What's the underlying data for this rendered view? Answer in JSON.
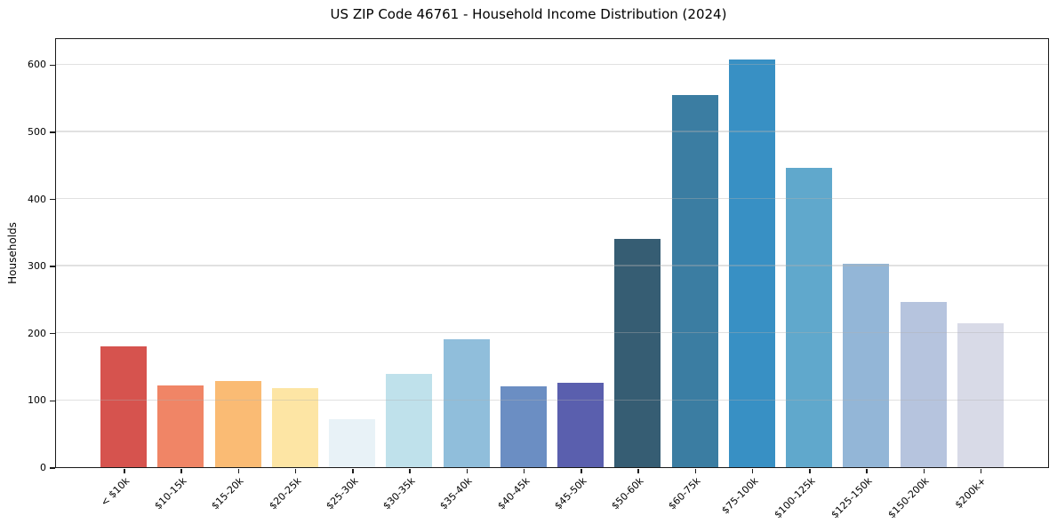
{
  "chart_data": {
    "type": "bar",
    "title": "US ZIP Code 46761 - Household Income Distribution (2024)",
    "xlabel": "",
    "ylabel": "Households",
    "categories": [
      "< $10k",
      "$10-15k",
      "$15-20k",
      "$20-25k",
      "$25-30k",
      "$30-35k",
      "$35-40k",
      "$40-45k",
      "$45-50k",
      "$50-60k",
      "$60-75k",
      "$75-100k",
      "$100-125k",
      "$125-150k",
      "$150-200k",
      "$200k+"
    ],
    "values": [
      181,
      122,
      129,
      118,
      72,
      139,
      191,
      121,
      126,
      341,
      556,
      610,
      448,
      304,
      247,
      215
    ],
    "bar_colors": [
      "#d6534e",
      "#f08566",
      "#fabb74",
      "#fde5a4",
      "#e8f2f7",
      "#bfe1eb",
      "#90bedb",
      "#6b8ec3",
      "#5a5fae",
      "#365d73",
      "#3b7da2",
      "#3890c4",
      "#60a8cc",
      "#93b6d7",
      "#b6c4de",
      "#d8dae7"
    ],
    "yticks": [
      0,
      100,
      200,
      300,
      400,
      500,
      600
    ],
    "ylim": [
      0,
      640
    ],
    "grid": "horizontal",
    "grid_above_bars": true,
    "legend": "none"
  },
  "colors": {
    "background": "#ffffff",
    "spine": "#1a1a1a",
    "grid": "#b0b0b0",
    "text": "#000000"
  }
}
